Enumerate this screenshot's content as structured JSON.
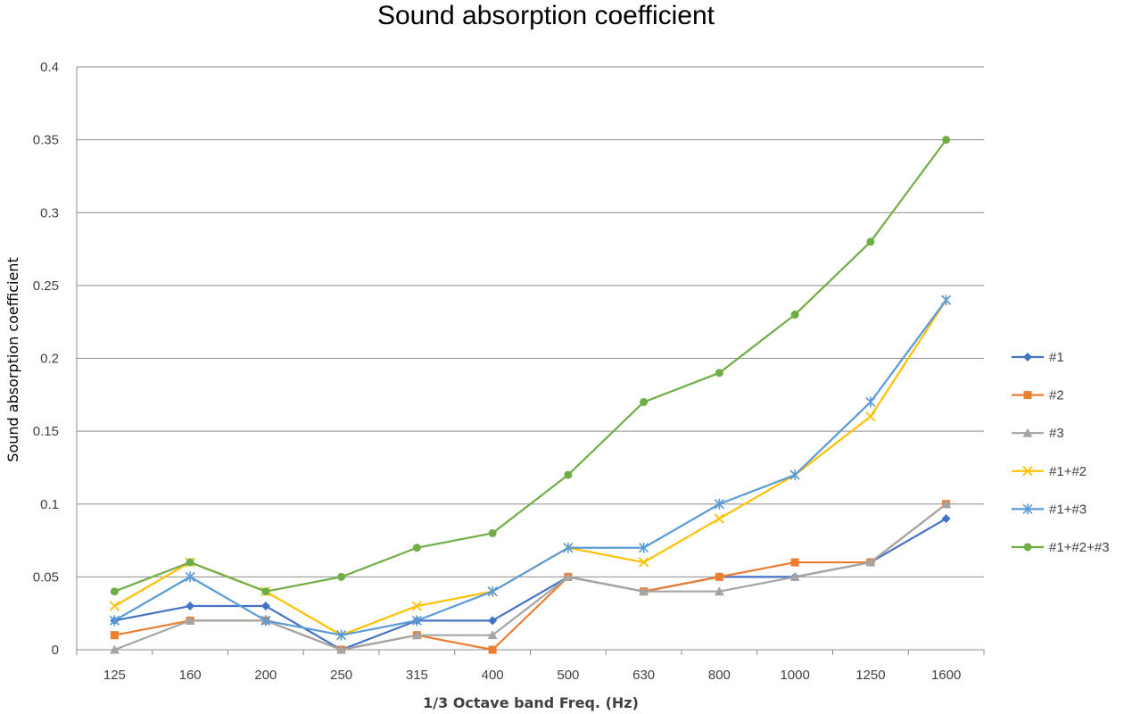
{
  "chart_data": {
    "type": "line",
    "title": "Sound absorption coefficient",
    "xlabel": "1/3 Octave band Freq. (Hz)",
    "ylabel": "Sound absorption coefficient",
    "categories": [
      "125",
      "160",
      "200",
      "250",
      "315",
      "400",
      "500",
      "630",
      "800",
      "1000",
      "1250",
      "1600"
    ],
    "ylim": [
      0,
      0.4
    ],
    "yticks": [
      {
        "value": 0,
        "label": "0"
      },
      {
        "value": 0.05,
        "label": "0.05"
      },
      {
        "value": 0.1,
        "label": "0.1"
      },
      {
        "value": 0.15,
        "label": "0.15"
      },
      {
        "value": 0.2,
        "label": "0.2"
      },
      {
        "value": 0.25,
        "label": "0.25"
      },
      {
        "value": 0.3,
        "label": "0.3"
      },
      {
        "value": 0.35,
        "label": "0.35"
      },
      {
        "value": 0.4,
        "label": "0.4"
      }
    ],
    "grid": true,
    "legend_position": "right",
    "series": [
      {
        "name": "#1",
        "color": "#4472C4",
        "marker": "diamond",
        "values": [
          0.02,
          0.03,
          0.03,
          0.0,
          0.02,
          0.02,
          0.05,
          0.04,
          0.05,
          0.05,
          0.06,
          0.09
        ]
      },
      {
        "name": "#2",
        "color": "#ED7D31",
        "marker": "square",
        "values": [
          0.01,
          0.02,
          0.02,
          0.0,
          0.01,
          0.0,
          0.05,
          0.04,
          0.05,
          0.06,
          0.06,
          0.1
        ]
      },
      {
        "name": "#3",
        "color": "#A5A5A5",
        "marker": "triangle",
        "values": [
          0.0,
          0.02,
          0.02,
          0.0,
          0.01,
          0.01,
          0.05,
          0.04,
          0.04,
          0.05,
          0.06,
          0.1
        ]
      },
      {
        "name": "#1+#2",
        "color": "#FFC000",
        "marker": "x",
        "values": [
          0.03,
          0.06,
          0.04,
          0.01,
          0.03,
          0.04,
          0.07,
          0.06,
          0.09,
          0.12,
          0.16,
          0.24
        ]
      },
      {
        "name": "#1+#3",
        "color": "#5B9BD5",
        "marker": "star",
        "values": [
          0.02,
          0.05,
          0.02,
          0.01,
          0.02,
          0.04,
          0.07,
          0.07,
          0.1,
          0.12,
          0.17,
          0.24
        ]
      },
      {
        "name": "#1+#2+#3",
        "color": "#70AD47",
        "marker": "circle",
        "values": [
          0.04,
          0.06,
          0.04,
          0.05,
          0.07,
          0.08,
          0.12,
          0.17,
          0.19,
          0.23,
          0.28,
          0.35
        ]
      }
    ]
  }
}
